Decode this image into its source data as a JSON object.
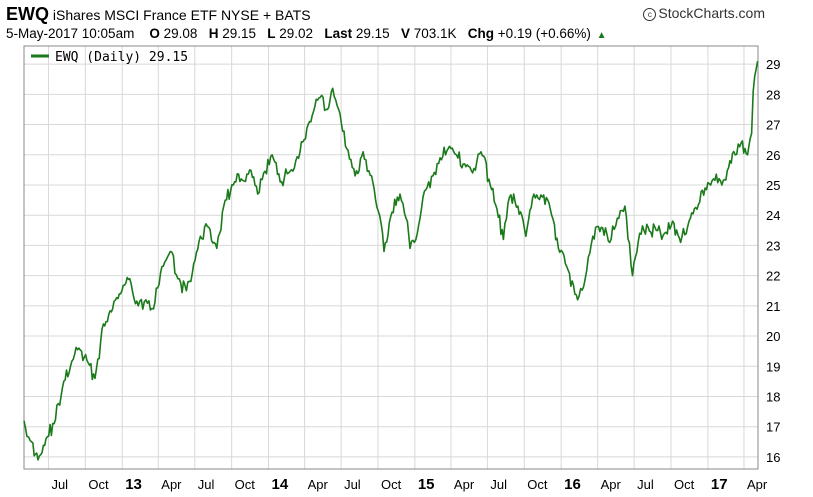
{
  "header": {
    "symbol": "EWQ",
    "name": "iShares MSCI France ETF",
    "exchange": "NYSE + BATS",
    "credit": "StockCharts.com",
    "date": "5-May-2017 10:05am",
    "open_label": "O",
    "open": "29.08",
    "high_label": "H",
    "high": "29.15",
    "low_label": "L",
    "low": "29.02",
    "last_label": "Last",
    "last": "29.15",
    "volume_label": "V",
    "volume": "703.1K",
    "change_label": "Chg",
    "change": "+0.19 (+0.66%)",
    "change_icon": "up-triangle-icon"
  },
  "chart_data": {
    "type": "line",
    "legend": "EWQ (Daily) 29.15",
    "legend_position": "top-left",
    "line_color": "#1a7a1a",
    "grid": true,
    "ylim": [
      15.6,
      29.6
    ],
    "y_ticks": [
      "16",
      "17",
      "18",
      "19",
      "20",
      "21",
      "22",
      "23",
      "24",
      "25",
      "26",
      "27",
      "28",
      "29"
    ],
    "x_ticks": [
      "Jul",
      "Oct",
      "13",
      "Apr",
      "Jul",
      "Oct",
      "14",
      "Apr",
      "Jul",
      "Oct",
      "15",
      "Apr",
      "Jul",
      "Oct",
      "16",
      "Apr",
      "Jul",
      "Oct",
      "17",
      "Apr"
    ],
    "x_tick_bold": [
      false,
      false,
      true,
      false,
      false,
      false,
      true,
      false,
      false,
      false,
      true,
      false,
      false,
      false,
      true,
      false,
      false,
      false,
      true,
      false
    ],
    "series": [
      {
        "name": "EWQ (Daily)",
        "x": [
          "2012-05-01",
          "2012-05-20",
          "2012-06-05",
          "2012-06-25",
          "2012-07-15",
          "2012-08-05",
          "2012-08-25",
          "2012-09-15",
          "2012-10-05",
          "2012-10-25",
          "2012-11-15",
          "2012-12-05",
          "2012-12-28",
          "2013-01-20",
          "2013-02-10",
          "2013-03-01",
          "2013-03-20",
          "2013-04-10",
          "2013-05-01",
          "2013-05-20",
          "2013-06-10",
          "2013-06-25",
          "2013-07-15",
          "2013-08-05",
          "2013-08-25",
          "2013-09-15",
          "2013-10-05",
          "2013-10-25",
          "2013-11-15",
          "2013-12-05",
          "2013-12-20",
          "2014-01-10",
          "2014-01-30",
          "2014-02-20",
          "2014-03-10",
          "2014-03-31",
          "2014-04-20",
          "2014-05-10",
          "2014-05-28",
          "2014-06-10",
          "2014-06-25",
          "2014-07-15",
          "2014-08-05",
          "2014-08-25",
          "2014-09-15",
          "2014-10-05",
          "2014-10-16",
          "2014-11-05",
          "2014-11-25",
          "2014-12-10",
          "2014-12-20",
          "2015-01-07",
          "2015-01-25",
          "2015-02-15",
          "2015-03-05",
          "2015-03-25",
          "2015-04-15",
          "2015-05-05",
          "2015-05-25",
          "2015-06-15",
          "2015-07-08",
          "2015-07-25",
          "2015-08-10",
          "2015-08-25",
          "2015-09-15",
          "2015-10-05",
          "2015-10-25",
          "2015-11-15",
          "2015-12-05",
          "2015-12-25",
          "2016-01-15",
          "2016-02-11",
          "2016-03-01",
          "2016-03-20",
          "2016-04-10",
          "2016-05-01",
          "2016-05-20",
          "2016-06-08",
          "2016-06-27",
          "2016-07-15",
          "2016-08-05",
          "2016-08-25",
          "2016-09-15",
          "2016-10-05",
          "2016-10-25",
          "2016-11-15",
          "2016-12-05",
          "2016-12-25",
          "2017-01-15",
          "2017-02-05",
          "2017-02-25",
          "2017-03-10",
          "2017-03-25",
          "2017-04-10",
          "2017-04-20",
          "2017-04-24",
          "2017-05-05"
        ],
        "y": [
          17.2,
          16.5,
          15.9,
          16.6,
          17.1,
          18.3,
          19.0,
          19.6,
          19.2,
          18.6,
          20.4,
          20.8,
          21.4,
          21.9,
          21.0,
          21.2,
          20.9,
          22.3,
          22.8,
          21.9,
          21.5,
          22.1,
          23.3,
          23.6,
          22.9,
          24.5,
          25.0,
          25.2,
          25.5,
          24.7,
          25.4,
          26.0,
          25.1,
          25.4,
          25.8,
          26.5,
          27.3,
          27.9,
          27.5,
          28.2,
          27.5,
          26.2,
          25.3,
          26.1,
          25.3,
          24.0,
          22.8,
          24.1,
          24.7,
          23.9,
          22.9,
          23.4,
          24.8,
          25.3,
          25.9,
          26.2,
          26.0,
          25.7,
          25.4,
          26.1,
          25.0,
          24.2,
          23.2,
          24.6,
          24.3,
          23.3,
          24.7,
          24.6,
          24.2,
          22.9,
          22.3,
          21.2,
          21.9,
          23.3,
          23.6,
          23.1,
          23.9,
          24.3,
          22.0,
          23.4,
          23.6,
          23.5,
          23.4,
          23.8,
          23.1,
          23.8,
          24.2,
          24.9,
          25.2,
          25.0,
          25.8,
          26.0,
          26.4,
          26.0,
          26.7,
          28.1,
          29.1
        ]
      }
    ]
  }
}
